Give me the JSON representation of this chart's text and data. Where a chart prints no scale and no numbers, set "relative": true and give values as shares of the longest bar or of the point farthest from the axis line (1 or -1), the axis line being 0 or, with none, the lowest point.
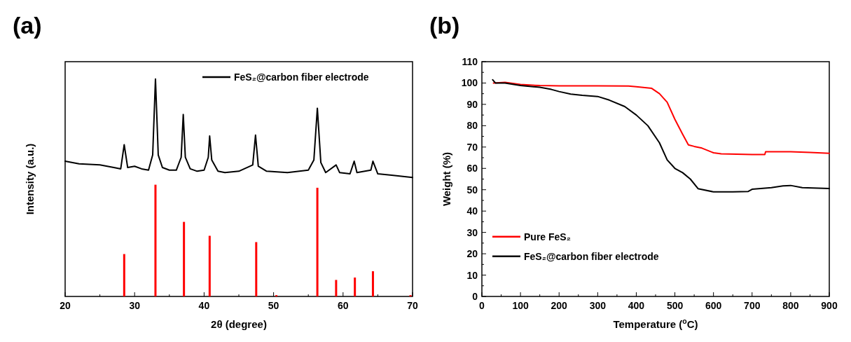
{
  "chart_data": [
    {
      "type": "line",
      "title": "(a)",
      "xlabel": "2θ (degree)",
      "ylabel": "Intensity (a.u.)",
      "relative": true,
      "tick_labels": "x",
      "legend": "top right",
      "xlim": [
        20,
        70
      ],
      "xticks": [
        20,
        {
          "value": 25,
          "label": null
        },
        30,
        {
          "value": 35,
          "label": null
        },
        40,
        {
          "value": 45,
          "label": null
        },
        50,
        {
          "value": 55,
          "label": null
        },
        60,
        {
          "value": 65,
          "label": null
        },
        70
      ],
      "series": [
        {
          "name": "FeS₂@carbon fiber electrode",
          "color": "#000000",
          "x": [
            20,
            22,
            25,
            27,
            28,
            28.5,
            29,
            30,
            31,
            32,
            32.6,
            33,
            33.4,
            34,
            35,
            36,
            36.7,
            37,
            37.3,
            38,
            39,
            40,
            40.6,
            40.8,
            41.1,
            42,
            43,
            45,
            47,
            47.4,
            47.8,
            49,
            52,
            55,
            55.8,
            56.3,
            56.8,
            57.5,
            59,
            59.5,
            61,
            61.6,
            62,
            64,
            64.3,
            65,
            67,
            70
          ],
          "values": [
            0.622,
            0.61,
            0.605,
            0.593,
            0.587,
            0.698,
            0.593,
            0.599,
            0.587,
            0.581,
            0.651,
            1,
            0.651,
            0.593,
            0.581,
            0.581,
            0.64,
            0.837,
            0.64,
            0.587,
            0.576,
            0.581,
            0.64,
            0.738,
            0.628,
            0.576,
            0.57,
            0.576,
            0.605,
            0.742,
            0.599,
            0.576,
            0.57,
            0.581,
            0.628,
            0.866,
            0.616,
            0.57,
            0.605,
            0.57,
            0.564,
            0.622,
            0.57,
            0.581,
            0.622,
            0.564,
            0.558,
            0.547
          ]
        },
        {
          "type": "bar",
          "color": "#ff0000",
          "x": [
            28.5,
            33,
            37.1,
            40.8,
            47.5,
            50.4,
            56.3,
            59,
            61.7,
            64.3,
            69.7
          ],
          "values": [
            0.195,
            0.514,
            0.343,
            0.279,
            0.25,
            0.006,
            0.5,
            0.076,
            0.087,
            0.116,
            0.006
          ]
        }
      ]
    },
    {
      "type": "line",
      "title": "(b)",
      "xlabel": "Temperature ($^{o}$C)",
      "ylabel": "Weight (%)",
      "legend": "bottom left",
      "xlim": [
        0,
        900
      ],
      "xticks": [
        0,
        {
          "value": 50,
          "label": null
        },
        100,
        {
          "value": 150,
          "label": null
        },
        200,
        {
          "value": 250,
          "label": null
        },
        300,
        {
          "value": 350,
          "label": null
        },
        400,
        {
          "value": 450,
          "label": null
        },
        500,
        {
          "value": 550,
          "label": null
        },
        600,
        {
          "value": 650,
          "label": null
        },
        700,
        {
          "value": 750,
          "label": null
        },
        800,
        {
          "value": 850,
          "label": null
        },
        900
      ],
      "ylim": [
        0,
        110
      ],
      "yticks": [
        0,
        {
          "value": 5,
          "label": null
        },
        10,
        {
          "value": 15,
          "label": null
        },
        20,
        {
          "value": 25,
          "label": null
        },
        30,
        {
          "value": 35,
          "label": null
        },
        40,
        {
          "value": 45,
          "label": null
        },
        50,
        {
          "value": 55,
          "label": null
        },
        60,
        {
          "value": 65,
          "label": null
        },
        70,
        {
          "value": 75,
          "label": null
        },
        80,
        {
          "value": 85,
          "label": null
        },
        90,
        {
          "value": 95,
          "label": null
        },
        100,
        {
          "value": 105,
          "label": null
        },
        110
      ],
      "series": [
        {
          "name": "Pure FeS₂",
          "color": "#ff0000",
          "x": [
            30,
            60,
            100,
            150,
            200,
            300,
            380,
            400,
            440,
            460,
            480,
            500,
            520,
            535,
            550,
            570,
            600,
            620,
            700,
            733,
            735,
            800,
            850,
            900
          ],
          "values": [
            100,
            100.3,
            99.3,
            98.8,
            98.7,
            98.7,
            98.6,
            98.3,
            97.5,
            95,
            91,
            83,
            76,
            71,
            70.3,
            69.5,
            67.3,
            66.8,
            66.5,
            66.5,
            67.8,
            67.8,
            67.5,
            67.1
          ]
        },
        {
          "name": "FeS₂@carbon fiber electrode",
          "color": "#000000",
          "x": [
            28,
            35,
            60,
            100,
            150,
            180,
            200,
            230,
            260,
            300,
            330,
            370,
            400,
            430,
            460,
            480,
            500,
            520,
            540,
            560,
            600,
            650,
            690,
            700,
            750,
            780,
            800,
            830,
            900
          ],
          "values": [
            101.5,
            100,
            100,
            98.8,
            98,
            97,
            96,
            94.8,
            94.2,
            93.7,
            92,
            89,
            85,
            80,
            72,
            64,
            60,
            58,
            55,
            50.5,
            49,
            49,
            49.2,
            50.2,
            51,
            51.8,
            52,
            51,
            50.6
          ]
        }
      ]
    }
  ]
}
